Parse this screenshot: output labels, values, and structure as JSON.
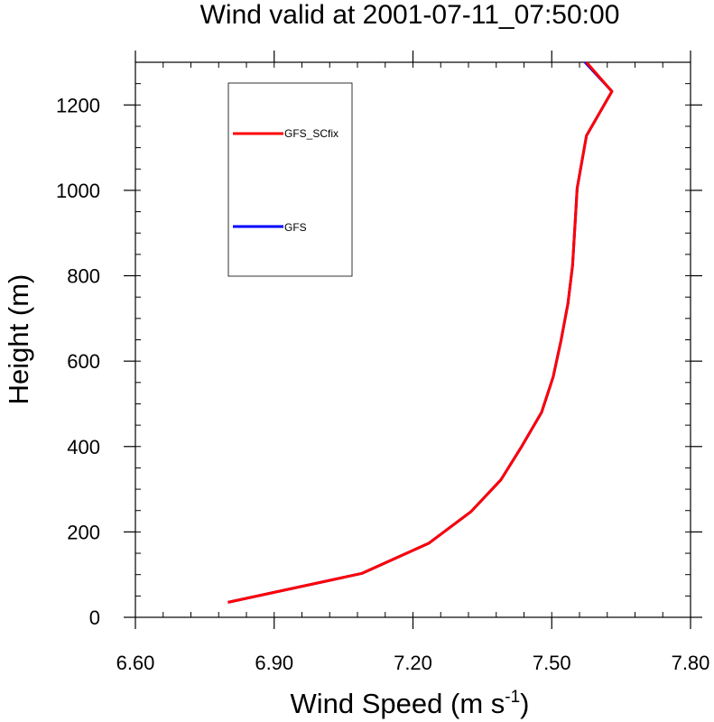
{
  "chart_data": {
    "type": "line",
    "title": "Wind valid at 2001-07-11_07:50:00",
    "xlabel": "Wind Speed (m s",
    "xlabel_sup": "-1",
    "xlabel_close": ")",
    "ylabel": "Height (m)",
    "xlim": [
      6.6,
      7.8
    ],
    "ylim": [
      0,
      1300
    ],
    "x_ticks": [
      "6.60",
      "6.90",
      "7.20",
      "7.50",
      "7.80"
    ],
    "y_ticks": [
      "0",
      "200",
      "400",
      "600",
      "800",
      "1000",
      "1200"
    ],
    "grid": false,
    "legend_position": "top-left",
    "series": [
      {
        "name": "GFS_SCfix",
        "color": "#ff0000",
        "x": [
          6.8,
          7.09,
          7.235,
          7.325,
          7.39,
          7.435,
          7.478,
          7.503,
          7.52,
          7.535,
          7.545,
          7.55,
          7.555,
          7.575,
          7.63,
          7.575
        ],
        "y": [
          35,
          103,
          174,
          247,
          322,
          400,
          480,
          563,
          648,
          735,
          824,
          915,
          1005,
          1128,
          1232,
          1300
        ]
      },
      {
        "name": "GFS",
        "color": "#0000ff",
        "x": [
          6.8,
          7.09,
          7.235,
          7.325,
          7.39,
          7.435,
          7.478,
          7.503,
          7.52,
          7.535,
          7.545,
          7.55,
          7.555,
          7.575,
          7.63,
          7.572
        ],
        "y": [
          35,
          103,
          174,
          247,
          322,
          400,
          480,
          563,
          648,
          735,
          824,
          915,
          1005,
          1128,
          1232,
          1300
        ]
      }
    ]
  }
}
